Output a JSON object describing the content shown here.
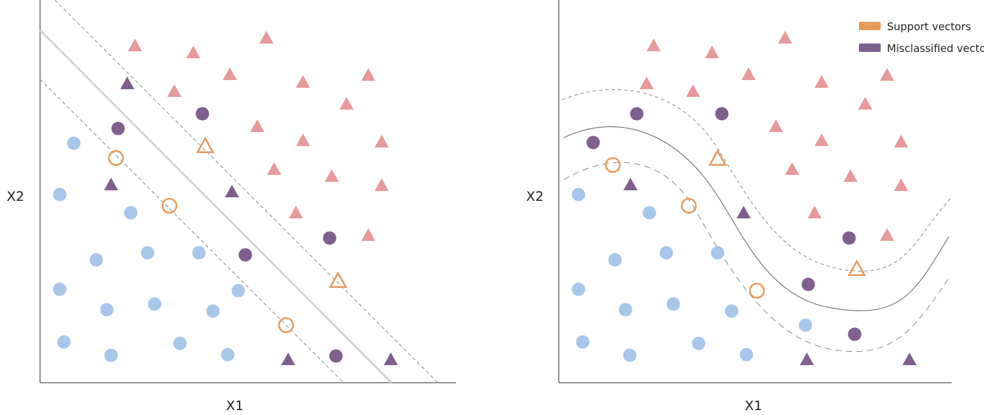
{
  "colors": {
    "class_a": "#e8999b",
    "class_b": "#a6c6ea",
    "misclassified": "#7f5f8e",
    "support": "#e89a5c",
    "axis": "#6e6e6e",
    "margin_line": "#8a8a8a",
    "linear_boundary": "#d3d3d3",
    "curved_boundary": "#7a7a7a"
  },
  "legend": {
    "support_label": "Support vectors",
    "misclassified_label": "Misclassified vectors"
  },
  "panels": [
    {
      "id": "linear",
      "x_label": "X1",
      "y_label": "X2",
      "boundary": "linear"
    },
    {
      "id": "nonlinear",
      "x_label": "X1",
      "y_label": "X2",
      "boundary": "curved"
    }
  ],
  "point_legend": {
    "class_a_marker": "triangle",
    "class_b_marker": "circle",
    "support_marker": "hollow",
    "misclassified_marker": "filled-purple"
  }
}
